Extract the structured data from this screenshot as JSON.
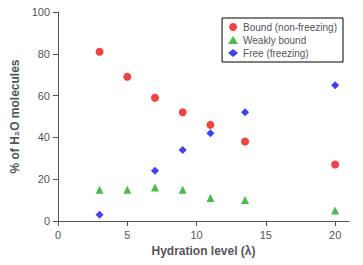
{
  "chart_data": {
    "type": "scatter",
    "xlabel": "Hydration level (λ)",
    "ylabel": "% of H₂O molecules",
    "series": [
      {
        "name": "Bound (non-freezing)",
        "color": "#ee1111",
        "marker": "circle",
        "x": [
          3,
          5,
          7,
          9,
          11,
          13.5,
          20
        ],
        "values": [
          81,
          69,
          59,
          52,
          46,
          38,
          27
        ]
      },
      {
        "name": "Weakly bound",
        "color": "#22aa22",
        "marker": "triangle",
        "x": [
          3,
          5,
          7,
          9,
          11,
          13.5,
          20
        ],
        "values": [
          15,
          15,
          16,
          15,
          11,
          10,
          5
        ]
      },
      {
        "name": "Free (freezing)",
        "color": "#1111ee",
        "marker": "diamond",
        "x": [
          3,
          7,
          9,
          11,
          13.5,
          20
        ],
        "values": [
          3,
          24,
          34,
          42,
          52,
          65
        ]
      }
    ],
    "xlim": [
      0,
      21
    ],
    "xticks": [
      0,
      5,
      10,
      15,
      20
    ],
    "ylim": [
      0,
      100
    ],
    "yticks": [
      0,
      20,
      40,
      60,
      80,
      100
    ],
    "grid": false,
    "legend": "upper right"
  }
}
